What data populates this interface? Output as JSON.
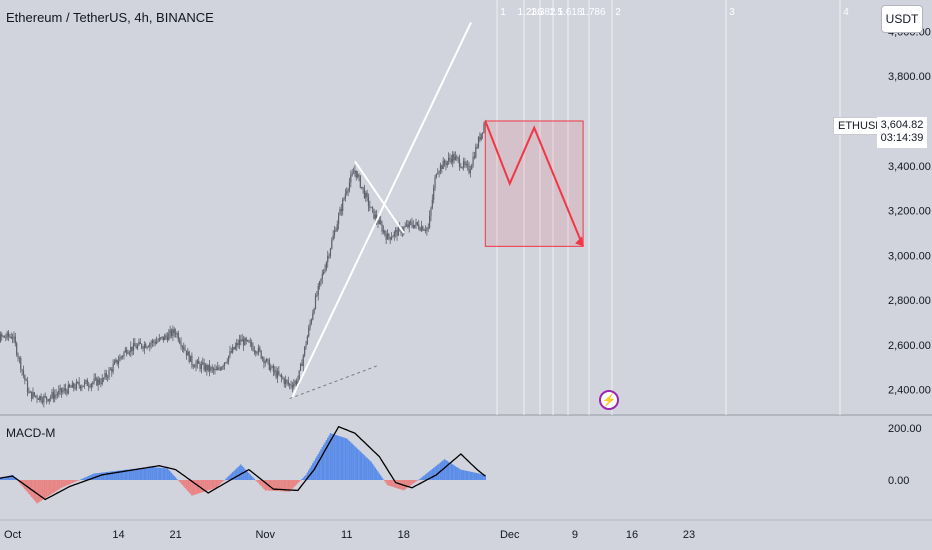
{
  "header": {
    "symbol_title": "Ethereum / TetherUS, 4h, BINANCE",
    "currency_button": "USDT"
  },
  "price_tag": {
    "symbol": "ETHUSDT",
    "last_price": "3,604.82",
    "countdown": "03:14:39"
  },
  "macd": {
    "label": "MACD-M",
    "ticks": [
      "200.00",
      "0.00"
    ]
  },
  "fib_time_labels": [
    "1",
    "1.236",
    "1.382",
    "1.5",
    "1.618",
    "1.786",
    "2",
    "3",
    "4"
  ],
  "colors": {
    "bg": "#d1d4dc",
    "candle": "#5d606b",
    "drawing": "#ffffff",
    "forecast": "#f23645",
    "macd_pos": "#5b8de8",
    "macd_neg": "#e88484",
    "macd_line": "#000000",
    "alert": "#9c27b0"
  },
  "icons": {
    "alert": "lightning-alert-icon"
  },
  "chart_data": {
    "type": "candlestick",
    "title": "Ethereum / TetherUS, 4h, BINANCE",
    "y_ticks": [
      "2,400.00",
      "2,600.00",
      "2,800.00",
      "3,000.00",
      "3,200.00",
      "3,400.00",
      "3,600.00",
      "3,800.00",
      "4,000.00"
    ],
    "y_range": [
      2300,
      4060
    ],
    "x_ticks": [
      "Oct",
      "14",
      "21",
      "Nov",
      "11",
      "18",
      "Dec",
      "9",
      "16",
      "23"
    ],
    "price_path": [
      [
        "Sep 27",
        2620
      ],
      [
        "Oct 1",
        2640
      ],
      [
        "Oct 3",
        2380
      ],
      [
        "Oct 5",
        2360
      ],
      [
        "Oct 9",
        2420
      ],
      [
        "Oct 12",
        2440
      ],
      [
        "Oct 15",
        2580
      ],
      [
        "Oct 19",
        2620
      ],
      [
        "Oct 21",
        2660
      ],
      [
        "Oct 23",
        2520
      ],
      [
        "Oct 26",
        2480
      ],
      [
        "Oct 29",
        2620
      ],
      [
        "Oct 31",
        2580
      ],
      [
        "Nov 2",
        2480
      ],
      [
        "Nov 4",
        2420
      ],
      [
        "Nov 5",
        2440
      ],
      [
        "Nov 7",
        2780
      ],
      [
        "Nov 9",
        3040
      ],
      [
        "Nov 11",
        3300
      ],
      [
        "Nov 12",
        3380
      ],
      [
        "Nov 14",
        3200
      ],
      [
        "Nov 16",
        3080
      ],
      [
        "Nov 19",
        3140
      ],
      [
        "Nov 21",
        3120
      ],
      [
        "Nov 22",
        3380
      ],
      [
        "Nov 24",
        3440
      ],
      [
        "Nov 26",
        3380
      ],
      [
        "Nov 28",
        3604.82
      ]
    ],
    "last_price": 3604.82,
    "forecast_path": [
      [
        "Nov 28",
        3600
      ],
      [
        "Dec 1",
        3320
      ],
      [
        "Dec 4",
        3570
      ],
      [
        "Dec 10",
        3040
      ]
    ],
    "forecast_box": {
      "from": "Nov 28",
      "to": "Dec 10",
      "high": 3600,
      "low": 3040
    },
    "macd_range": [
      -100,
      210
    ],
    "macd_hist": [
      [
        "Sep 27",
        -10
      ],
      [
        "Oct 1",
        20
      ],
      [
        "Oct 4",
        -90
      ],
      [
        "Oct 7",
        -30
      ],
      [
        "Oct 11",
        25
      ],
      [
        "Oct 15",
        40
      ],
      [
        "Oct 18",
        50
      ],
      [
        "Oct 20",
        45
      ],
      [
        "Oct 23",
        -60
      ],
      [
        "Oct 26",
        -30
      ],
      [
        "Oct 29",
        60
      ],
      [
        "Nov 1",
        -40
      ],
      [
        "Nov 4",
        -45
      ],
      [
        "Nov 6",
        20
      ],
      [
        "Nov 9",
        180
      ],
      [
        "Nov 11",
        160
      ],
      [
        "Nov 14",
        70
      ],
      [
        "Nov 16",
        -20
      ],
      [
        "Nov 18",
        -40
      ],
      [
        "Nov 20",
        5
      ],
      [
        "Nov 23",
        80
      ],
      [
        "Nov 25",
        40
      ],
      [
        "Nov 28",
        20
      ]
    ],
    "macd_signal": [
      [
        "Sep 27",
        -5
      ],
      [
        "Oct 1",
        15
      ],
      [
        "Oct 5",
        -75
      ],
      [
        "Oct 8",
        -25
      ],
      [
        "Oct 12",
        20
      ],
      [
        "Oct 16",
        40
      ],
      [
        "Oct 19",
        55
      ],
      [
        "Oct 21",
        40
      ],
      [
        "Oct 25",
        -50
      ],
      [
        "Oct 28",
        5
      ],
      [
        "Oct 30",
        40
      ],
      [
        "Nov 2",
        -35
      ],
      [
        "Nov 5",
        -40
      ],
      [
        "Nov 7",
        40
      ],
      [
        "Nov 10",
        205
      ],
      [
        "Nov 12",
        180
      ],
      [
        "Nov 15",
        90
      ],
      [
        "Nov 17",
        -10
      ],
      [
        "Nov 19",
        -30
      ],
      [
        "Nov 22",
        20
      ],
      [
        "Nov 25",
        100
      ],
      [
        "Nov 27",
        40
      ],
      [
        "Nov 28",
        15
      ]
    ]
  }
}
